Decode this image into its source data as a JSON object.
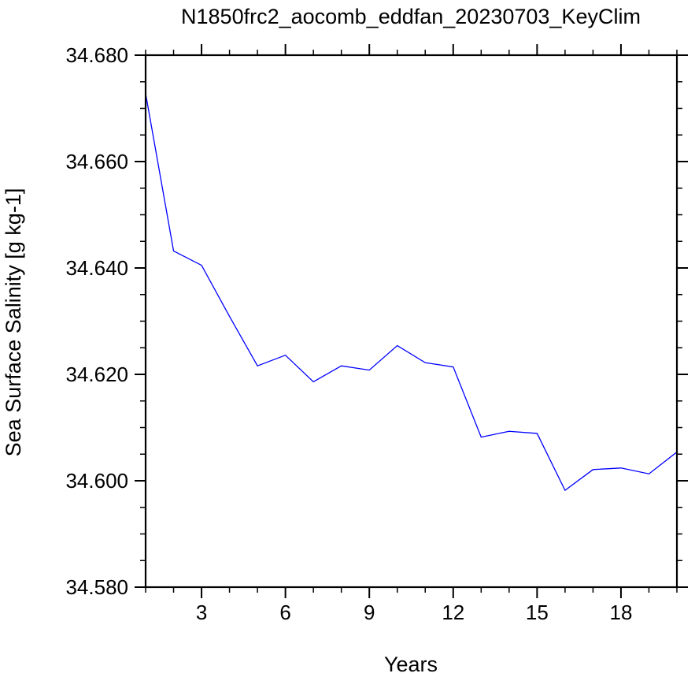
{
  "chart_data": {
    "type": "line",
    "title": "N1850frc2_aocomb_eddfan_20230703_KeyClim",
    "xlabel": "Years",
    "ylabel": "Sea Surface Salinity [g kg-1]",
    "xlim": [
      1,
      20
    ],
    "ylim": [
      34.58,
      34.68
    ],
    "x_ticks": [
      3,
      6,
      9,
      12,
      15,
      18
    ],
    "x_tick_labels": [
      "3",
      "6",
      "9",
      "12",
      "15",
      "18"
    ],
    "y_ticks": [
      34.58,
      34.6,
      34.62,
      34.64,
      34.66,
      34.68
    ],
    "y_tick_labels": [
      "34.580",
      "34.600",
      "34.620",
      "34.640",
      "34.660",
      "34.680"
    ],
    "grid": false,
    "line_color": "#0000ff",
    "series": [
      {
        "x": [
          1,
          2,
          3,
          4,
          5,
          6,
          7,
          8,
          9,
          10,
          11,
          12,
          13,
          14,
          15,
          16,
          17,
          18,
          19,
          20
        ],
        "values": [
          34.6728,
          34.6432,
          34.6405,
          34.6309,
          34.6216,
          34.6236,
          34.6186,
          34.6216,
          34.6208,
          34.6254,
          34.6222,
          34.6214,
          34.6082,
          34.6093,
          34.6089,
          34.5982,
          34.6021,
          34.6024,
          34.6013,
          34.6054
        ]
      }
    ]
  }
}
